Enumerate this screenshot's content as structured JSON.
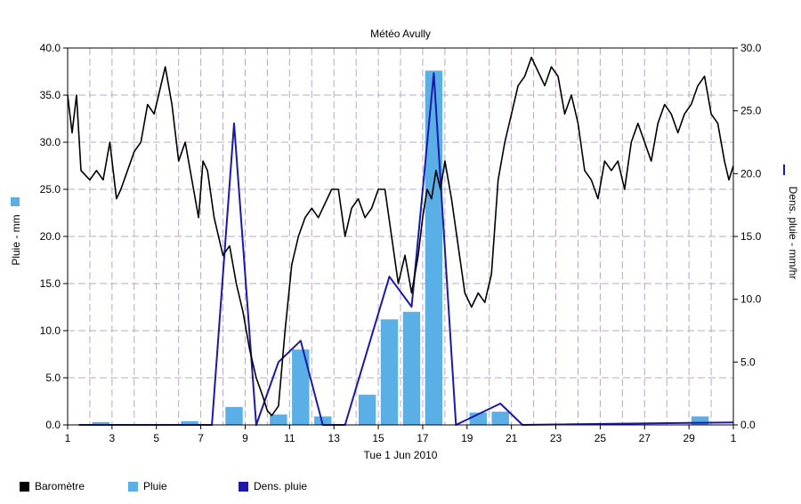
{
  "chart_data": {
    "type": "bar+line",
    "title": "Météo Avully",
    "xlabel": "Tue 1 Jun 2010",
    "ylabel_left": "Pluie - mm",
    "ylabel_right": "Dens. pluie - mm/hr",
    "x_ticks": [
      "1",
      "3",
      "5",
      "7",
      "9",
      "11",
      "13",
      "15",
      "17",
      "19",
      "21",
      "23",
      "25",
      "27",
      "29",
      "1"
    ],
    "x_range": [
      1,
      31
    ],
    "ylim_left": [
      0,
      40
    ],
    "yticks_left": [
      "0.0",
      "5.0",
      "10.0",
      "15.0",
      "20.0",
      "25.0",
      "30.0",
      "35.0",
      "40.0"
    ],
    "ylim_right": [
      0,
      30
    ],
    "yticks_right": [
      "0.0",
      "5.0",
      "10.0",
      "15.0",
      "20.0",
      "25.0",
      "30.0"
    ],
    "grid": true,
    "legend_position": "bottom-left",
    "colors": {
      "barometre": "#000000",
      "pluie": "#5ab0e6",
      "dens_pluie": "#1a1aa6",
      "grid": "#b8a8c8"
    },
    "series": [
      {
        "name": "Pluie",
        "type": "bar",
        "axis": "left",
        "x": [
          2.5,
          6.5,
          8.5,
          10.5,
          11.5,
          12.5,
          14.5,
          15.5,
          16.5,
          17.5,
          19.5,
          20.5,
          29.5
        ],
        "values": [
          0.3,
          0.4,
          1.9,
          1.1,
          8.0,
          0.9,
          3.2,
          11.2,
          12.0,
          37.6,
          1.3,
          1.4,
          0.9
        ]
      },
      {
        "name": "Dens. pluie",
        "type": "line",
        "axis": "right",
        "x": [
          1.5,
          7.5,
          8.5,
          9.5,
          10.5,
          11.5,
          12.5,
          13.5,
          15.5,
          16.5,
          17.5,
          18.5,
          20.5,
          21.5,
          31
        ],
        "values": [
          0,
          0,
          24,
          0,
          5,
          6.7,
          0,
          0,
          11.8,
          9.4,
          28,
          0,
          1.7,
          0,
          0.2
        ]
      },
      {
        "name": "Baromètre",
        "type": "line",
        "axis": "left",
        "x": [
          1,
          1.2,
          1.4,
          1.6,
          1.8,
          2,
          2.3,
          2.6,
          2.9,
          3.2,
          3.4,
          3.7,
          4,
          4.3,
          4.6,
          4.9,
          5.2,
          5.4,
          5.7,
          6,
          6.3,
          6.6,
          6.9,
          7.1,
          7.3,
          7.6,
          8,
          8.3,
          8.6,
          8.9,
          9.2,
          9.5,
          9.8,
          10,
          10.2,
          10.5,
          10.8,
          11.1,
          11.4,
          11.7,
          12,
          12.3,
          12.6,
          12.9,
          13.2,
          13.5,
          13.8,
          14.1,
          14.4,
          14.7,
          15,
          15.3,
          15.6,
          15.9,
          16.2,
          16.5,
          16.8,
          17,
          17.2,
          17.4,
          17.6,
          17.8,
          18,
          18.3,
          18.6,
          18.9,
          19.2,
          19.5,
          19.8,
          20.1,
          20.4,
          20.7,
          21,
          21.3,
          21.6,
          21.9,
          22.2,
          22.5,
          22.8,
          23.1,
          23.4,
          23.7,
          24,
          24.3,
          24.6,
          24.9,
          25.2,
          25.5,
          25.8,
          26.1,
          26.4,
          26.7,
          27,
          27.3,
          27.6,
          27.9,
          28.2,
          28.5,
          28.8,
          29.1,
          29.4,
          29.7,
          30,
          30.3,
          30.6,
          30.8,
          31
        ],
        "values": [
          35,
          31,
          35,
          27,
          26.5,
          26,
          27,
          26,
          30,
          24,
          25,
          27,
          29,
          30,
          34,
          33,
          36,
          38,
          34,
          28,
          30,
          26,
          22,
          28,
          27,
          22,
          18,
          19,
          15,
          12,
          8,
          5,
          3,
          1.5,
          1,
          2,
          10,
          17,
          20,
          22,
          23,
          22,
          23.5,
          25,
          25,
          20,
          23,
          24,
          22,
          23,
          25,
          25,
          20,
          15,
          18,
          14,
          18,
          22,
          25,
          24,
          27,
          25,
          28,
          24,
          19,
          14,
          12.5,
          14,
          13,
          16,
          26,
          30,
          33,
          36,
          37,
          39,
          37.5,
          36,
          38,
          37,
          33,
          35,
          32,
          27,
          26,
          24,
          28,
          27,
          28,
          25,
          30,
          32,
          30,
          28,
          32,
          34,
          33,
          31,
          33,
          34,
          36,
          37,
          33,
          32,
          28,
          26,
          27.5
        ]
      }
    ],
    "legend": [
      "Baromètre",
      "Pluie",
      "Dens. pluie"
    ]
  }
}
